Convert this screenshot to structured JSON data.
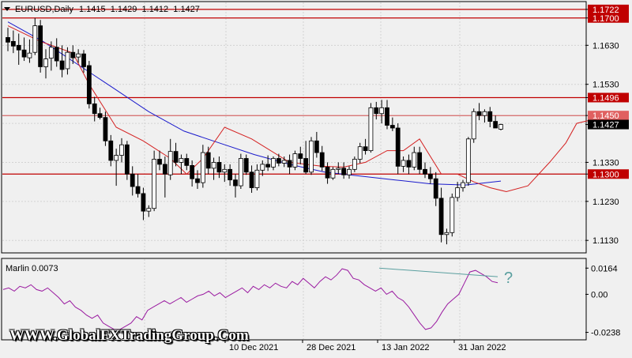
{
  "header": {
    "symbol": "EURUSD,Daily",
    "ohlc": "1.1415  1.1429  1.1412  1.1427"
  },
  "indicator": {
    "label": "Marlin 0.0073",
    "annotation": "?"
  },
  "watermark": "WWW.GlobalFXTradingGroup.Com",
  "colors": {
    "bg": "#f0f0f0",
    "grid": "#d2d2d2",
    "level": "#c00000",
    "ma_fast": "#d42020",
    "ma_slow": "#1a1acc",
    "oscillator": "#9a1aa0",
    "divergence": "#5a9f9f",
    "price_tag": "#000000"
  },
  "chart_data": [
    {
      "type": "candlestick",
      "title": "EURUSD,Daily",
      "y_ticks": [
        "1.1722",
        "1.1700",
        "1.1630",
        "1.1530",
        "1.1496",
        "1.1450",
        "1.1427",
        "1.1330",
        "1.1300",
        "1.1230",
        "1.1130"
      ],
      "ylim": [
        1.11,
        1.174
      ],
      "x_ticks": [
        "10 Dec 2021",
        "28 Dec 2021",
        "13 Jan 2022",
        "31 Jan 2022"
      ],
      "levels": [
        {
          "label": "1.1722",
          "value": 1.1722,
          "kind": "solid"
        },
        {
          "label": "1.1700",
          "value": 1.17,
          "kind": "solid"
        },
        {
          "label": "1.1496",
          "value": 1.1496,
          "kind": "solid"
        },
        {
          "label": "1.1450",
          "value": 1.145,
          "kind": "thin"
        },
        {
          "label": "1.1300",
          "value": 1.13,
          "kind": "solid"
        }
      ],
      "current_price": "1.1427",
      "candles": [
        [
          1.165,
          1.1675,
          1.1615,
          1.1638
        ],
        [
          1.164,
          1.1668,
          1.161,
          1.1628
        ],
        [
          1.163,
          1.166,
          1.158,
          1.1618
        ],
        [
          1.1618,
          1.165,
          1.159,
          1.16
        ],
        [
          1.1598,
          1.1645,
          1.1585,
          1.161
        ],
        [
          1.1612,
          1.17,
          1.1605,
          1.168
        ],
        [
          1.168,
          1.1695,
          1.156,
          1.1575
        ],
        [
          1.1575,
          1.162,
          1.1545,
          1.1595
        ],
        [
          1.1597,
          1.164,
          1.1565,
          1.1625
        ],
        [
          1.1625,
          1.1648,
          1.1575,
          1.159
        ],
        [
          1.159,
          1.163,
          1.1548,
          1.1568
        ],
        [
          1.157,
          1.1625,
          1.1555,
          1.1612
        ],
        [
          1.1612,
          1.163,
          1.1582,
          1.1598
        ],
        [
          1.16,
          1.162,
          1.1585,
          1.1608
        ],
        [
          1.1608,
          1.1618,
          1.156,
          1.1575
        ],
        [
          1.1578,
          1.159,
          1.1468,
          1.148
        ],
        [
          1.148,
          1.1498,
          1.1435,
          1.1455
        ],
        [
          1.1455,
          1.147,
          1.144,
          1.1445
        ],
        [
          1.1445,
          1.146,
          1.1372,
          1.1385
        ],
        [
          1.1385,
          1.14,
          1.132,
          1.1335
        ],
        [
          1.1335,
          1.1365,
          1.127,
          1.1348
        ],
        [
          1.1348,
          1.1392,
          1.133,
          1.1375
        ],
        [
          1.1375,
          1.1385,
          1.1285,
          1.13
        ],
        [
          1.13,
          1.132,
          1.1245,
          1.1268
        ],
        [
          1.1268,
          1.13,
          1.124,
          1.125
        ],
        [
          1.125,
          1.1265,
          1.1182,
          1.1205
        ],
        [
          1.1205,
          1.122,
          1.119,
          1.1212
        ],
        [
          1.1212,
          1.136,
          1.1205,
          1.1338
        ],
        [
          1.1338,
          1.136,
          1.131,
          1.1325
        ],
        [
          1.1325,
          1.1345,
          1.124,
          1.13
        ],
        [
          1.1298,
          1.139,
          1.1285,
          1.1358
        ],
        [
          1.1358,
          1.138,
          1.132,
          1.133
        ],
        [
          1.133,
          1.135,
          1.13,
          1.134
        ],
        [
          1.134,
          1.1352,
          1.131,
          1.1322
        ],
        [
          1.1322,
          1.1335,
          1.1268,
          1.1288
        ],
        [
          1.1288,
          1.131,
          1.1262,
          1.1278
        ],
        [
          1.1278,
          1.1375,
          1.1265,
          1.1355
        ],
        [
          1.1355,
          1.137,
          1.13,
          1.1315
        ],
        [
          1.1315,
          1.1342,
          1.1285,
          1.133
        ],
        [
          1.133,
          1.1345,
          1.129,
          1.1305
        ],
        [
          1.1305,
          1.1325,
          1.128,
          1.1312
        ],
        [
          1.1312,
          1.1325,
          1.127,
          1.1285
        ],
        [
          1.1285,
          1.13,
          1.124,
          1.127
        ],
        [
          1.127,
          1.1352,
          1.1262,
          1.134
        ],
        [
          1.134,
          1.135,
          1.1298,
          1.1305
        ],
        [
          1.1305,
          1.1322,
          1.1252,
          1.1265
        ],
        [
          1.1265,
          1.1325,
          1.1258,
          1.131
        ],
        [
          1.131,
          1.1335,
          1.1295,
          1.1325
        ],
        [
          1.1325,
          1.1348,
          1.1308,
          1.1318
        ],
        [
          1.1318,
          1.1345,
          1.131,
          1.134
        ],
        [
          1.134,
          1.1352,
          1.132,
          1.1328
        ],
        [
          1.1328,
          1.1345,
          1.1318,
          1.1335
        ],
        [
          1.1335,
          1.135,
          1.13,
          1.1318
        ],
        [
          1.1318,
          1.136,
          1.131,
          1.1352
        ],
        [
          1.1352,
          1.137,
          1.1325,
          1.134
        ],
        [
          1.134,
          1.1385,
          1.13,
          1.1305
        ],
        [
          1.1305,
          1.1395,
          1.1298,
          1.1385
        ],
        [
          1.1385,
          1.1408,
          1.1342,
          1.1355
        ],
        [
          1.1355,
          1.1372,
          1.1308,
          1.1318
        ],
        [
          1.1318,
          1.133,
          1.1275,
          1.129
        ],
        [
          1.129,
          1.1318,
          1.1285,
          1.1312
        ],
        [
          1.1312,
          1.133,
          1.13,
          1.1315
        ],
        [
          1.1315,
          1.133,
          1.1288,
          1.1298
        ],
        [
          1.1298,
          1.132,
          1.1288,
          1.1312
        ],
        [
          1.1312,
          1.1345,
          1.1305,
          1.1338
        ],
        [
          1.1338,
          1.138,
          1.1328,
          1.137
        ],
        [
          1.137,
          1.139,
          1.135,
          1.136
        ],
        [
          1.136,
          1.1482,
          1.1355,
          1.147
        ],
        [
          1.147,
          1.1485,
          1.144,
          1.1455
        ],
        [
          1.1455,
          1.149,
          1.143,
          1.147
        ],
        [
          1.147,
          1.149,
          1.1415,
          1.1425
        ],
        [
          1.1425,
          1.1445,
          1.141,
          1.1418
        ],
        [
          1.1418,
          1.143,
          1.13,
          1.132
        ],
        [
          1.132,
          1.1345,
          1.1305,
          1.1335
        ],
        [
          1.1335,
          1.135,
          1.13,
          1.1318
        ],
        [
          1.1318,
          1.137,
          1.131,
          1.1355
        ],
        [
          1.1355,
          1.137,
          1.13,
          1.1312
        ],
        [
          1.1312,
          1.133,
          1.129,
          1.13
        ],
        [
          1.13,
          1.1318,
          1.1275,
          1.1288
        ],
        [
          1.1288,
          1.1305,
          1.1218,
          1.1238
        ],
        [
          1.1238,
          1.1265,
          1.1125,
          1.1145
        ],
        [
          1.1145,
          1.116,
          1.112,
          1.115
        ],
        [
          1.115,
          1.125,
          1.114,
          1.124
        ],
        [
          1.124,
          1.128,
          1.123,
          1.1265
        ],
        [
          1.1265,
          1.1285,
          1.1255,
          1.1278
        ],
        [
          1.1278,
          1.1395,
          1.127,
          1.139
        ],
        [
          1.139,
          1.1468,
          1.138,
          1.146
        ],
        [
          1.146,
          1.1482,
          1.1438,
          1.145
        ],
        [
          1.145,
          1.1466,
          1.1432,
          1.146
        ],
        [
          1.146,
          1.1472,
          1.142,
          1.1435
        ],
        [
          1.1435,
          1.145,
          1.1418,
          1.1418
        ],
        [
          1.1415,
          1.1429,
          1.1412,
          1.1427
        ]
      ],
      "ma_fast_points": [
        [
          0,
          1.168
        ],
        [
          6,
          1.164
        ],
        [
          12,
          1.161
        ],
        [
          15,
          1.153
        ],
        [
          20,
          1.142
        ],
        [
          25,
          1.1385
        ],
        [
          30,
          1.134
        ],
        [
          33,
          1.13
        ],
        [
          36,
          1.134
        ],
        [
          40,
          1.142
        ],
        [
          45,
          1.139
        ],
        [
          52,
          1.133
        ],
        [
          58,
          1.132
        ],
        [
          62,
          1.1318
        ],
        [
          66,
          1.133
        ],
        [
          70,
          1.136
        ],
        [
          73,
          1.136
        ],
        [
          76,
          1.139
        ],
        [
          80,
          1.13
        ],
        [
          83,
          1.13
        ],
        [
          86,
          1.128
        ],
        [
          89,
          1.1265
        ],
        [
          92,
          1.1255
        ],
        [
          96,
          1.127
        ],
        [
          100,
          1.133
        ],
        [
          103,
          1.138
        ],
        [
          105,
          1.143
        ],
        [
          108,
          1.144
        ],
        [
          110,
          1.144
        ]
      ],
      "ma_slow_points": [
        [
          0,
          1.169
        ],
        [
          10,
          1.164
        ],
        [
          20,
          1.158
        ],
        [
          30,
          1.152
        ],
        [
          40,
          1.146
        ],
        [
          50,
          1.141
        ],
        [
          60,
          1.138
        ],
        [
          70,
          1.135
        ],
        [
          80,
          1.1325
        ],
        [
          90,
          1.1305
        ],
        [
          100,
          1.1295
        ],
        [
          110,
          1.1285
        ],
        [
          120,
          1.1275
        ],
        [
          130,
          1.1272
        ],
        [
          140,
          1.1282
        ]
      ]
    },
    {
      "type": "line",
      "name": "Marlin 0.0073",
      "y_ticks": [
        "0.0164",
        "0.00",
        "-0.0238"
      ],
      "ylim": [
        -0.0255,
        0.019
      ],
      "values": [
        0.003,
        0.004,
        0.002,
        0.005,
        0.004,
        0.006,
        0.003,
        0.002,
        0.004,
        0.001,
        -0.002,
        -0.006,
        -0.004,
        -0.008,
        -0.01,
        -0.013,
        -0.015,
        -0.013,
        -0.018,
        -0.02,
        -0.022,
        -0.022,
        -0.02,
        -0.018,
        -0.014,
        -0.016,
        -0.01,
        -0.008,
        -0.006,
        -0.004,
        -0.006,
        -0.004,
        -0.002,
        -0.005,
        -0.003,
        -0.001,
        0.0,
        0.002,
        -0.001,
        0.001,
        -0.002,
        0.0,
        0.002,
        0.004,
        0.001,
        0.005,
        0.003,
        0.006,
        0.004,
        0.007,
        0.005,
        0.004,
        0.008,
        0.006,
        0.01,
        0.007,
        0.004,
        0.008,
        0.011,
        0.009,
        0.012,
        0.016,
        0.015,
        0.01,
        0.009,
        0.006,
        0.004,
        0.002,
        0.004,
        0.0,
        0.002,
        -0.002,
        -0.004,
        -0.008,
        -0.013,
        -0.018,
        -0.022,
        -0.021,
        -0.017,
        -0.011,
        -0.006,
        -0.003,
        0.0,
        0.007,
        0.014,
        0.015,
        0.013,
        0.011,
        0.008,
        0.0073
      ],
      "divergence_line": [
        [
          0.0164,
          0.013
        ]
      ]
    }
  ]
}
